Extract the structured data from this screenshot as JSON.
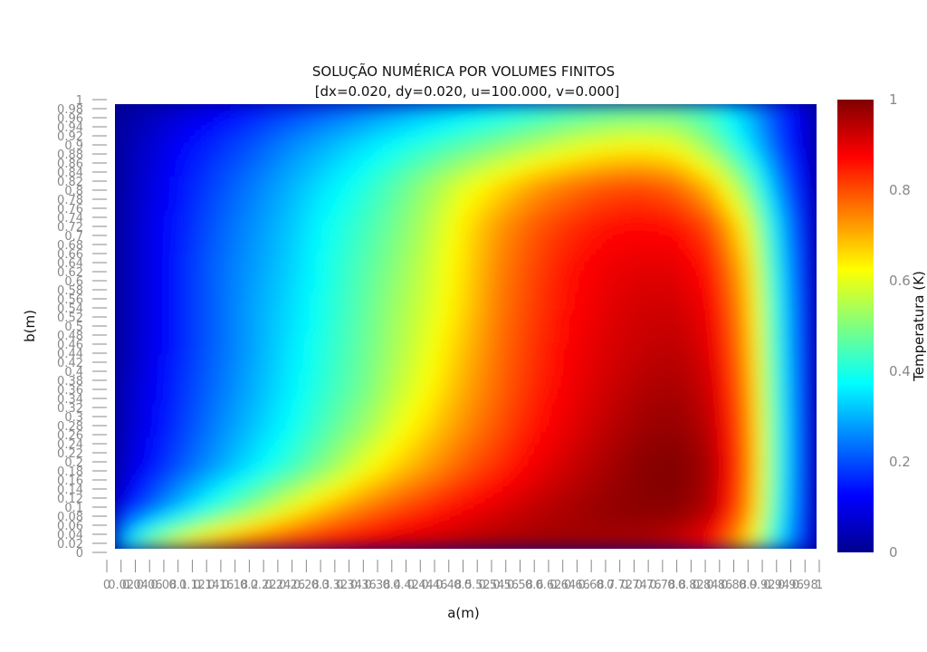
{
  "chart_data": {
    "type": "heatmap",
    "title": "SOLUÇÃO NUMÉRICA POR VOLUMES FINITOS",
    "subtitle": "[dx=0.020, dy=0.020, u=100.000, v=0.000]",
    "xlabel": "a(m)",
    "ylabel": "b(m)",
    "xlim": [
      0,
      1
    ],
    "ylim": [
      0,
      1
    ],
    "colorscale": "jet",
    "colorbar": {
      "title": "Temperatura (K)",
      "range": [
        0,
        1
      ],
      "ticks": [
        "0",
        "0.2",
        "0.4",
        "0.6",
        "0.8",
        "1"
      ]
    },
    "x_ticks": [
      "0",
      "0.02",
      "0.04",
      "0.06",
      "0.08",
      "0.1",
      "0.12",
      "0.14",
      "0.16",
      "0.18",
      "0.2",
      "0.22",
      "0.24",
      "0.26",
      "0.28",
      "0.3",
      "0.32",
      "0.34",
      "0.36",
      "0.38",
      "0.4",
      "0.42",
      "0.44",
      "0.46",
      "0.48",
      "0.5",
      "0.52",
      "0.54",
      "0.56",
      "0.58",
      "0.6",
      "0.62",
      "0.64",
      "0.66",
      "0.68",
      "0.7",
      "0.72",
      "0.74",
      "0.76",
      "0.78",
      "0.8",
      "0.82",
      "0.84",
      "0.86",
      "0.88",
      "0.9",
      "0.92",
      "0.94",
      "0.96",
      "0.98",
      "1"
    ],
    "y_ticks": [
      "0",
      "0.02",
      "0.04",
      "0.06",
      "0.08",
      "0.1",
      "0.12",
      "0.14",
      "0.16",
      "0.18",
      "0.2",
      "0.22",
      "0.24",
      "0.26",
      "0.28",
      "0.3",
      "0.32",
      "0.34",
      "0.36",
      "0.38",
      "0.4",
      "0.42",
      "0.44",
      "0.46",
      "0.48",
      "0.5",
      "0.52",
      "0.54",
      "0.56",
      "0.58",
      "0.6",
      "0.62",
      "0.64",
      "0.66",
      "0.68",
      "0.7",
      "0.72",
      "0.74",
      "0.76",
      "0.78",
      "0.8",
      "0.82",
      "0.84",
      "0.86",
      "0.88",
      "0.9",
      "0.92",
      "0.94",
      "0.96",
      "0.98",
      "1"
    ],
    "field_rows_top_to_bottom": [
      [
        0.02,
        0.05,
        0.08,
        0.11,
        0.14,
        0.17,
        0.2,
        0.23,
        0.26,
        0.29,
        0.32,
        0.35,
        0.38,
        0.41,
        0.43,
        0.44,
        0.44,
        0.4,
        0.3,
        0.16,
        0.05
      ],
      [
        0.03,
        0.08,
        0.13,
        0.17,
        0.21,
        0.26,
        0.3,
        0.34,
        0.38,
        0.42,
        0.46,
        0.5,
        0.54,
        0.58,
        0.61,
        0.62,
        0.6,
        0.5,
        0.36,
        0.18,
        0.05
      ],
      [
        0.03,
        0.09,
        0.15,
        0.2,
        0.25,
        0.3,
        0.35,
        0.4,
        0.46,
        0.53,
        0.6,
        0.66,
        0.72,
        0.76,
        0.79,
        0.8,
        0.77,
        0.68,
        0.5,
        0.24,
        0.05
      ],
      [
        0.03,
        0.1,
        0.16,
        0.22,
        0.27,
        0.32,
        0.38,
        0.43,
        0.49,
        0.56,
        0.65,
        0.73,
        0.79,
        0.83,
        0.86,
        0.87,
        0.86,
        0.8,
        0.62,
        0.3,
        0.05
      ],
      [
        0.03,
        0.1,
        0.17,
        0.23,
        0.28,
        0.33,
        0.39,
        0.45,
        0.51,
        0.58,
        0.66,
        0.75,
        0.81,
        0.86,
        0.89,
        0.9,
        0.9,
        0.85,
        0.68,
        0.33,
        0.05
      ],
      [
        0.03,
        0.1,
        0.17,
        0.23,
        0.29,
        0.34,
        0.4,
        0.46,
        0.53,
        0.59,
        0.67,
        0.76,
        0.82,
        0.87,
        0.9,
        0.92,
        0.92,
        0.88,
        0.71,
        0.35,
        0.05
      ],
      [
        0.03,
        0.1,
        0.17,
        0.23,
        0.29,
        0.35,
        0.41,
        0.47,
        0.54,
        0.61,
        0.69,
        0.77,
        0.83,
        0.88,
        0.91,
        0.93,
        0.94,
        0.9,
        0.73,
        0.36,
        0.05
      ],
      [
        0.04,
        0.11,
        0.18,
        0.24,
        0.3,
        0.36,
        0.42,
        0.48,
        0.56,
        0.63,
        0.71,
        0.78,
        0.84,
        0.89,
        0.92,
        0.95,
        0.96,
        0.92,
        0.75,
        0.37,
        0.05
      ],
      [
        0.04,
        0.12,
        0.19,
        0.26,
        0.32,
        0.38,
        0.45,
        0.52,
        0.6,
        0.67,
        0.74,
        0.8,
        0.86,
        0.9,
        0.94,
        0.97,
        0.98,
        0.94,
        0.77,
        0.38,
        0.05
      ],
      [
        0.05,
        0.14,
        0.22,
        0.29,
        0.36,
        0.43,
        0.51,
        0.6,
        0.67,
        0.73,
        0.79,
        0.84,
        0.89,
        0.93,
        0.96,
        0.99,
        1.0,
        0.96,
        0.78,
        0.38,
        0.05
      ],
      [
        0.09,
        0.22,
        0.33,
        0.43,
        0.52,
        0.61,
        0.69,
        0.75,
        0.8,
        0.84,
        0.88,
        0.91,
        0.94,
        0.96,
        0.98,
        0.99,
        0.99,
        0.95,
        0.76,
        0.37,
        0.05
      ],
      [
        0.3,
        0.55,
        0.68,
        0.77,
        0.83,
        0.87,
        0.9,
        0.92,
        0.94,
        0.95,
        0.96,
        0.97,
        0.97,
        0.97,
        0.96,
        0.95,
        0.92,
        0.85,
        0.66,
        0.32,
        0.05
      ]
    ]
  }
}
